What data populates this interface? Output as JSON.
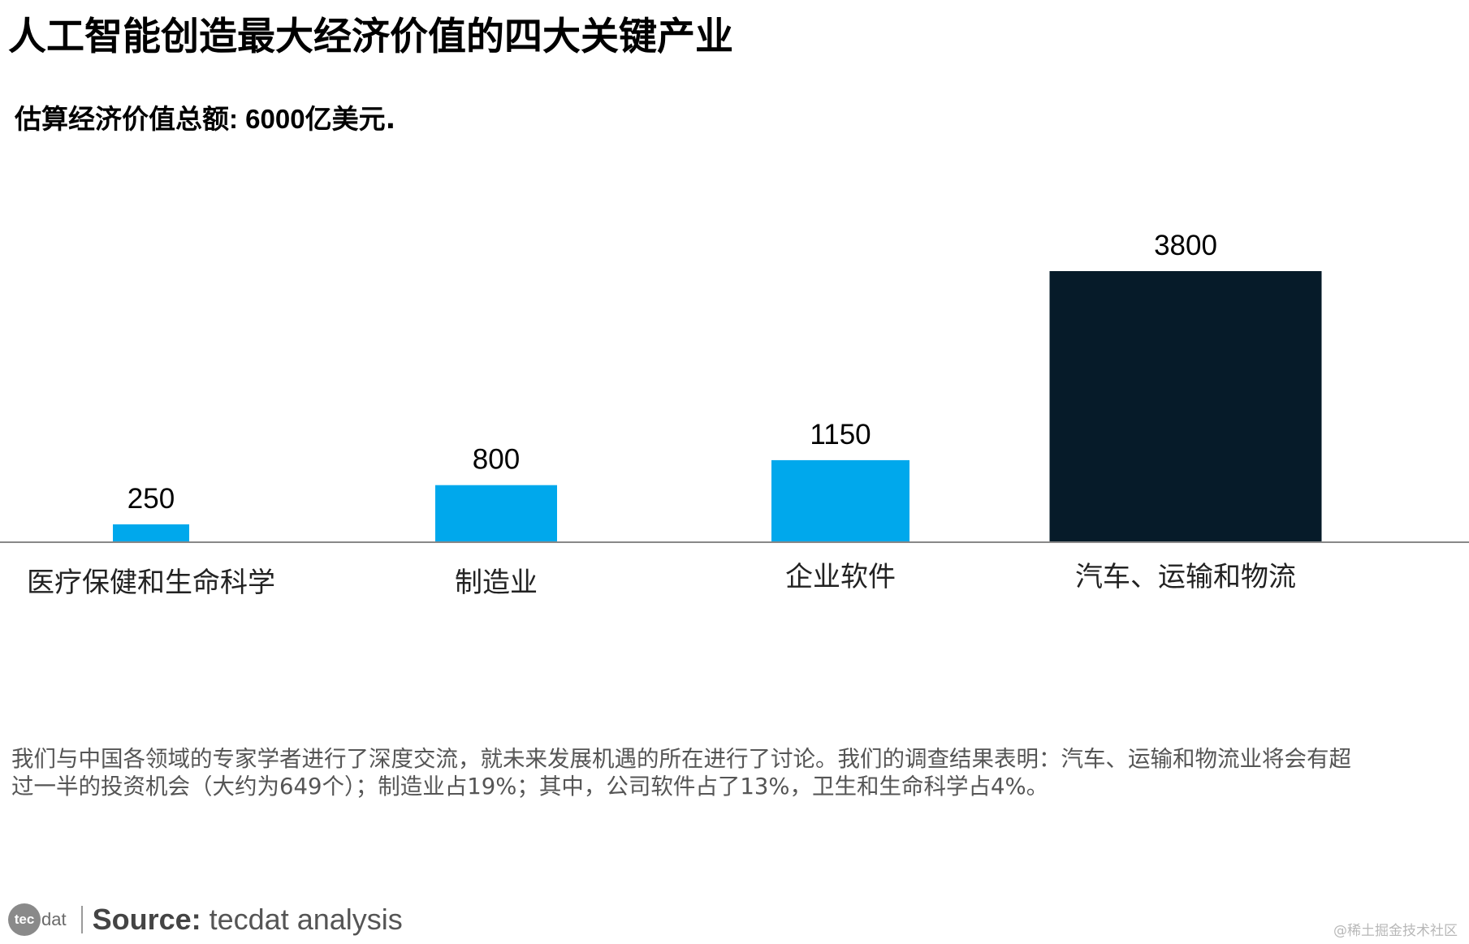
{
  "header": {
    "title": "人工智能创造最大经济价值的四大关键产业",
    "subtitle_prefix": "估算经济价值总额: ",
    "subtitle_value": "6000",
    "subtitle_suffix": "亿美元."
  },
  "chart_data": {
    "type": "bar",
    "categories": [
      "医疗保健和生命科学",
      "制造业",
      "企业软件",
      "汽车、运输和物流"
    ],
    "values": [
      250,
      800,
      1150,
      3800
    ],
    "value_labels": [
      "250",
      "800",
      "1150",
      "3800"
    ],
    "bar_colors": [
      "#00a8ec",
      "#00a8ec",
      "#00a8ec",
      "#061b29"
    ],
    "ylim": [
      0,
      3800
    ],
    "title": "",
    "xlabel": "",
    "ylabel": "",
    "grid": false,
    "legend": "none"
  },
  "body_text": "我们与中国各领域的专家学者进行了深度交流，就未来发展机遇的所在进行了讨论。我们的调查结果表明：汽车、运输和物流业将会有超过一半的投资机会（大约为649个）；制造业占19%；其中，公司软件占了13%，卫生和生命科学占4%。",
  "footer": {
    "logo_circle": "tec",
    "logo_rest": "dat",
    "source_label": "Source:",
    "source_text": "tecdat analysis"
  },
  "watermark": "@稀土掘金技术社区",
  "colors": {
    "accent_blue": "#00a8ec",
    "highlight_dark": "#061b29",
    "axis": "#888888"
  }
}
